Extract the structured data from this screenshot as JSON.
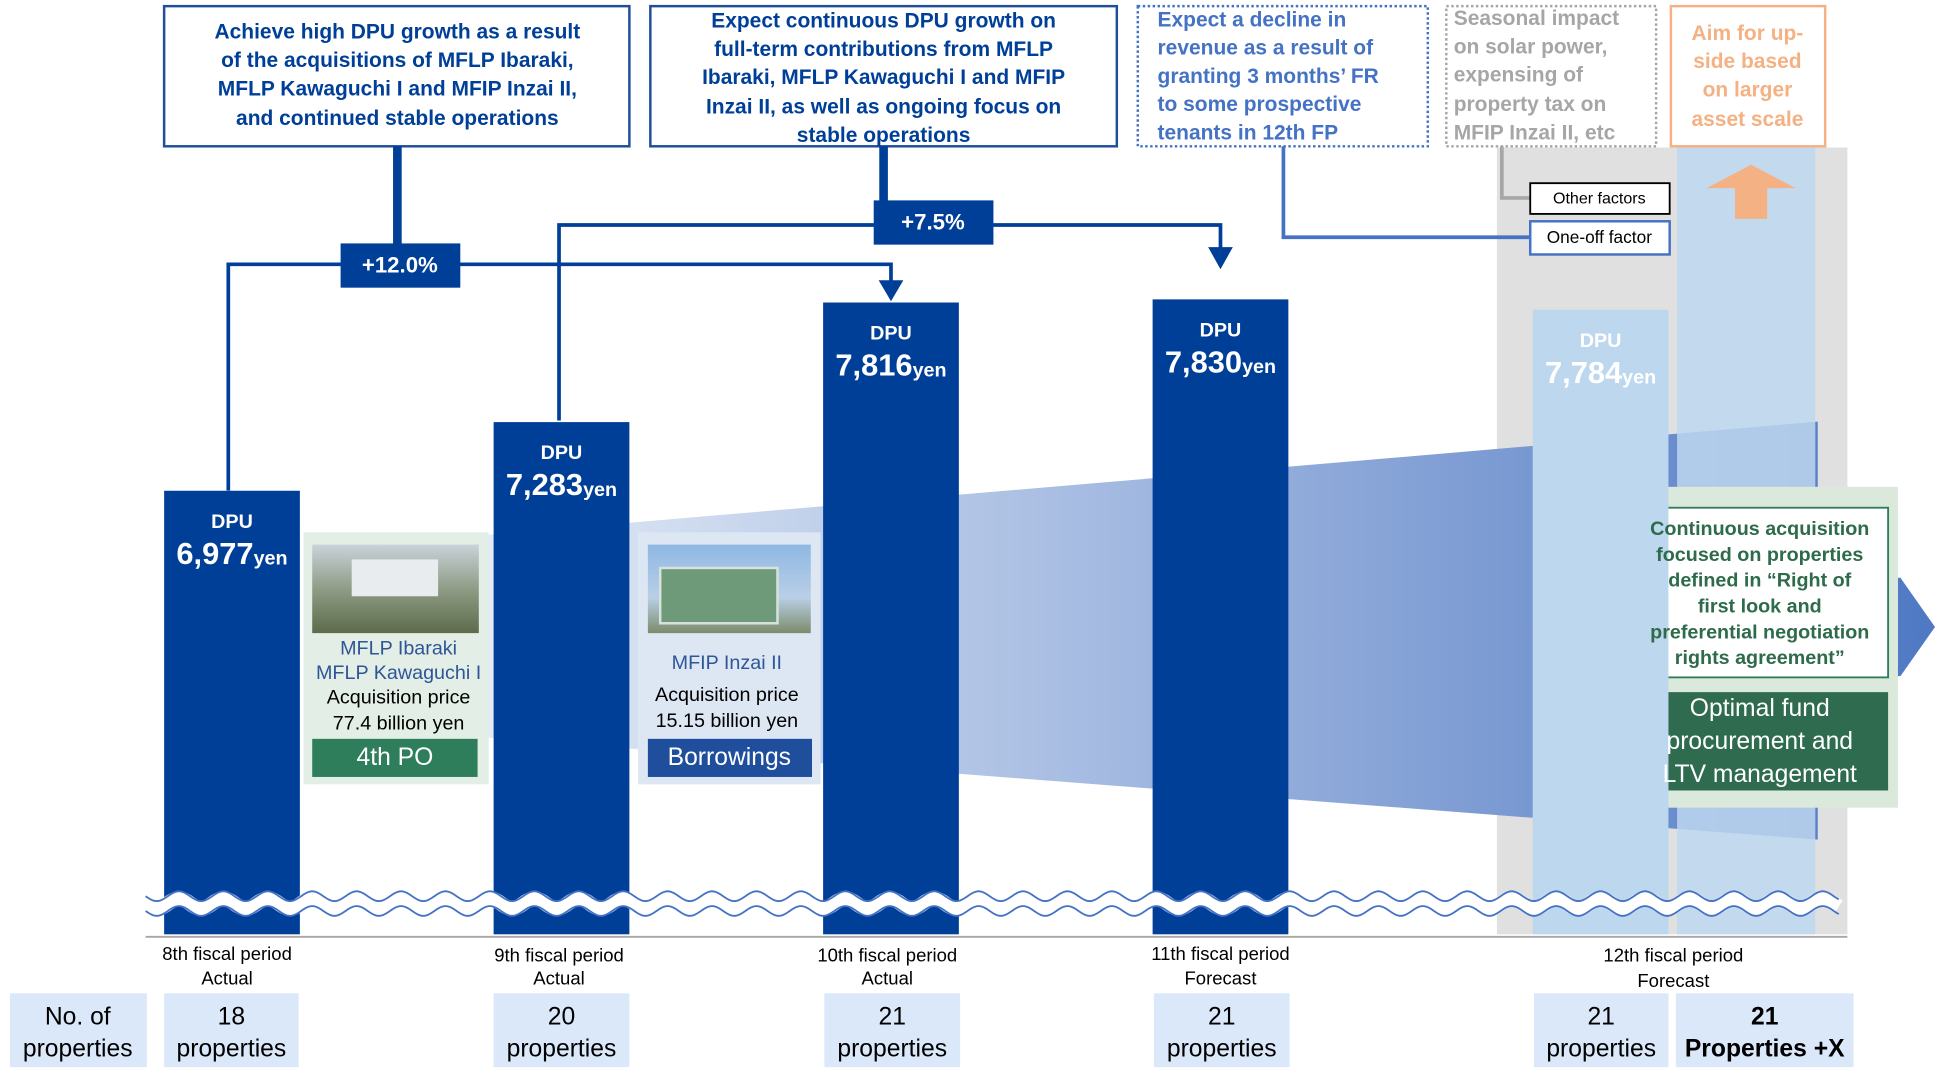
{
  "chart_data": {
    "type": "bar",
    "categories": [
      "8th fiscal period",
      "9th fiscal period",
      "10th fiscal period",
      "11th fiscal period",
      "12th fiscal period"
    ],
    "period_status": [
      "Actual",
      "Actual",
      "Actual",
      "Forecast",
      "Forecast"
    ],
    "values": [
      6977,
      7283,
      7816,
      7830,
      7784
    ],
    "value_labels": [
      "6,977",
      "7,283",
      "7,816",
      "7,830",
      "7,784"
    ],
    "colors": [
      "#003f98",
      "#003f98",
      "#003f98",
      "#003f98",
      "#bdd7ee"
    ],
    "bar_label": "DPU",
    "unit": "yen",
    "ylim": [
      5000,
      9000
    ],
    "callouts": [
      {
        "lines": [
          "Achieve high DPU growth as a result",
          "of the acquisitions of MFLP Ibaraki,",
          "MFLP Kawaguchi I and MFIP Inzai II,",
          "and continued stable operations"
        ]
      },
      {
        "lines": [
          "Expect continuous DPU growth on",
          "full-term contributions from MFLP",
          "Ibaraki, MFLP Kawaguchi I and MFIP",
          "Inzai II, as well as ongoing focus on",
          "stable operations"
        ]
      },
      {
        "lines": [
          "Expect a decline in",
          "revenue as a result of",
          "granting 3 months’ FR",
          "to some prospective",
          "tenants in 12th FP"
        ]
      },
      {
        "lines": [
          "Seasonal impact",
          "on solar power,",
          "expensing of",
          "property tax on",
          "MFIP Inzai II, etc"
        ]
      },
      {
        "lines": [
          "Aim for up-",
          "side based",
          "on larger",
          "asset scale"
        ]
      }
    ],
    "growth_labels": [
      "+12.0%",
      "+7.5%"
    ],
    "factor_labels": [
      "Other factors",
      "One-off factor"
    ],
    "acquisitions": [
      {
        "names": [
          "MFLP Ibaraki",
          "MFLP Kawaguchi I"
        ],
        "price_lines": [
          "Acquisition price",
          "77.4 billion yen"
        ],
        "funding": "4th PO"
      },
      {
        "names": [
          "MFIP Inzai II"
        ],
        "price_lines": [
          "Acquisition price",
          "15.15 billion yen"
        ],
        "funding": "Borrowings"
      }
    ],
    "strategy": {
      "lines": [
        "Continuous acquisition",
        "focused on properties",
        "defined in “Right of",
        "first look and",
        "preferential negotiation",
        "rights agreement”"
      ],
      "funding_lines": [
        "Optimal fund",
        "procurement and",
        "LTV management"
      ]
    },
    "properties_row": {
      "label_lines": [
        "No. of",
        "properties"
      ],
      "counts": [
        18,
        20,
        21,
        21,
        21,
        21
      ],
      "units": [
        "properties",
        "properties",
        "properties",
        "properties",
        "properties",
        "Properties +X"
      ]
    }
  }
}
